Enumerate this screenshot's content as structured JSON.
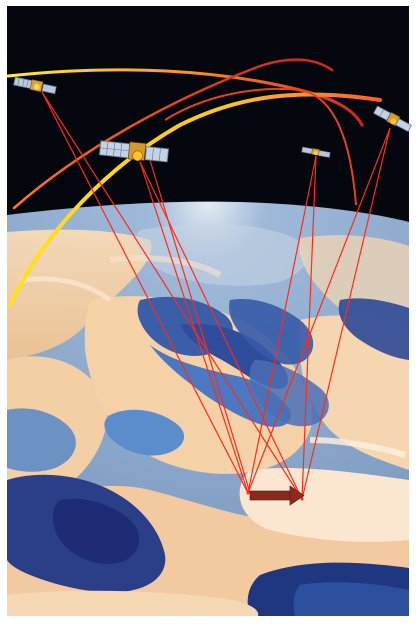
{
  "scene": {
    "description_hidden": "",
    "satellites": [
      {
        "id": "sat-1"
      },
      {
        "id": "sat-2"
      },
      {
        "id": "sat-3"
      },
      {
        "id": "sat-4"
      }
    ],
    "receiver_points": [
      {
        "id": "receiver-a"
      },
      {
        "id": "receiver-b"
      }
    ],
    "colors": {
      "space": "#05080f",
      "signal_line": "#ff2a1a",
      "orbit_yellow": "#ffe21a",
      "orbit_orange": "#ff7a1a",
      "orbit_red": "#e8401c",
      "arrow": "#8a2a1c",
      "cloud": "#f4c79b",
      "ocean": "#2c3f86",
      "land_blue": "#4a79b8"
    }
  }
}
